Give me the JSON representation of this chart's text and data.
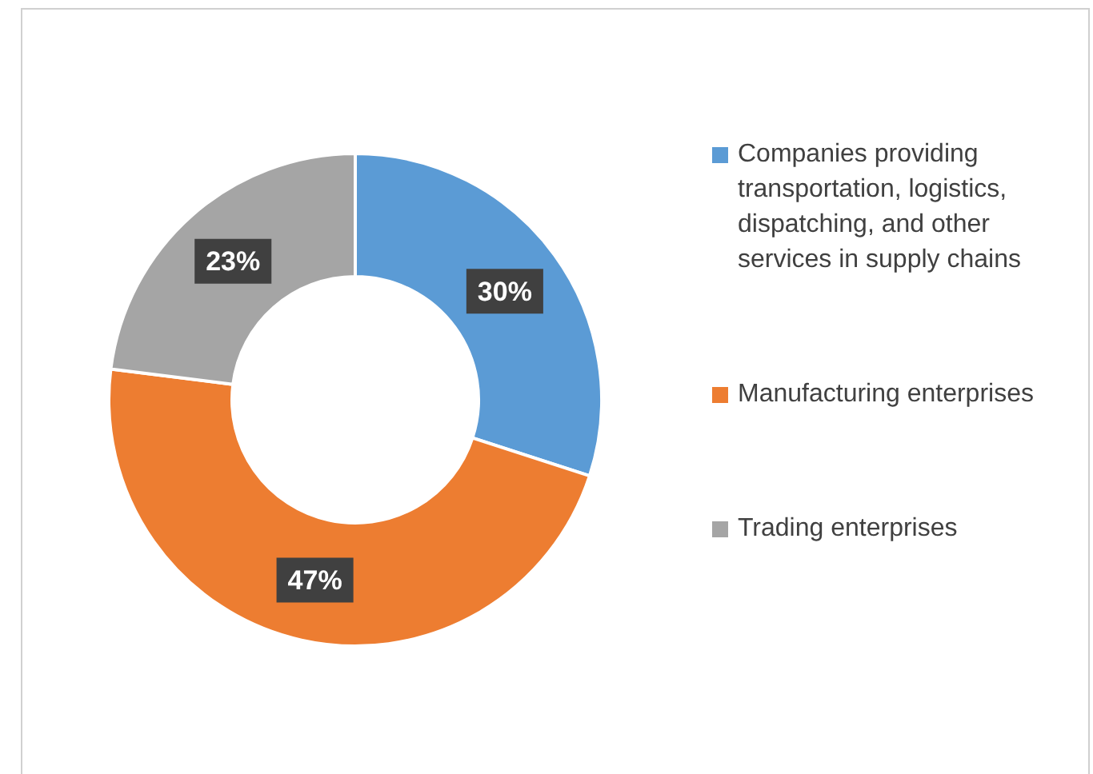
{
  "chart_data": {
    "type": "donut",
    "categories": [
      "Companies providing transportation, logistics, dispatching, and other services in supply chains",
      "Manufacturing enterprises",
      "Trading enterprises"
    ],
    "values": [
      30,
      47,
      23
    ],
    "colors": [
      "#5b9bd5",
      "#ed7d31",
      "#a5a5a5"
    ],
    "value_labels": [
      "30%",
      "47%",
      "23%"
    ],
    "legend": "right"
  }
}
